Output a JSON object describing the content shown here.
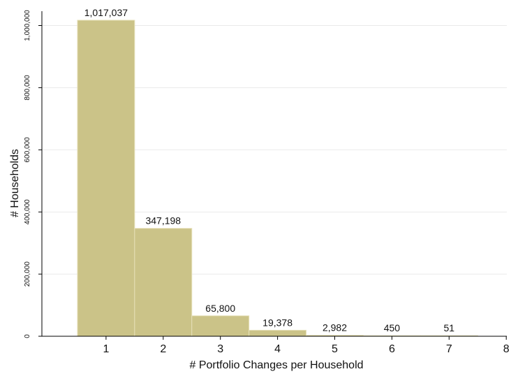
{
  "chart_data": {
    "type": "bar",
    "categories": [
      "1",
      "2",
      "3",
      "4",
      "5",
      "6",
      "7"
    ],
    "values": [
      1017037,
      347198,
      65800,
      19378,
      2982,
      450,
      51
    ],
    "value_labels": [
      "1,017,037",
      "347,198",
      "65,800",
      "19,378",
      "2,982",
      "450",
      "51"
    ],
    "xlabel": "# Portfolio Changes per Household",
    "ylabel": "# Households",
    "x_ticks": [
      "1",
      "2",
      "3",
      "4",
      "5",
      "6",
      "7",
      "8"
    ],
    "y_ticks": [
      0,
      200000,
      400000,
      600000,
      800000,
      1000000
    ],
    "y_tick_labels": [
      "0",
      "200,000",
      "400,000",
      "600,000",
      "800,000",
      "1,000,000"
    ],
    "xlim": [
      0,
      8
    ],
    "ylim": [
      0,
      1050000
    ],
    "grid": true,
    "legend": "none",
    "colors": {
      "bar_fill": "#cbc388",
      "bar_stroke": "#e6e0b8",
      "grid": "#eaeaea",
      "axis": "#000000"
    }
  }
}
